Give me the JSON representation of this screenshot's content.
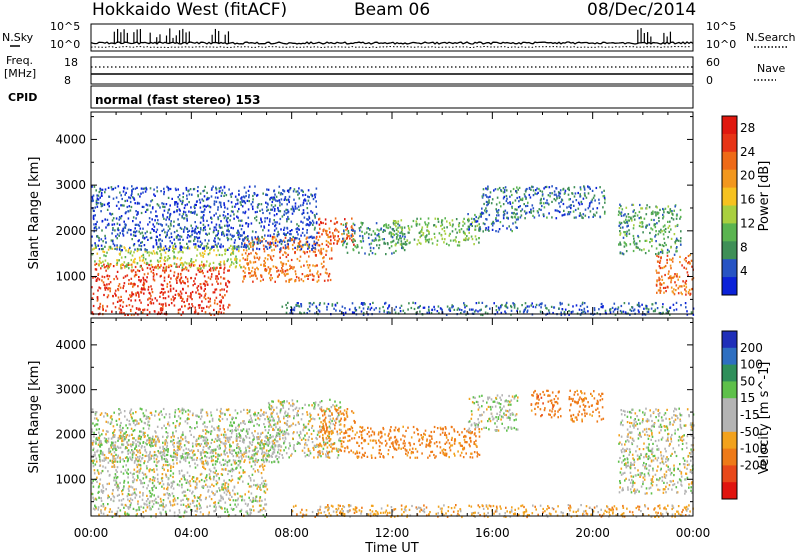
{
  "header": {
    "title": "Hokkaido West (fitACF)",
    "beam": "Beam 06",
    "date": "08/Dec/2014"
  },
  "status_panel": {
    "nsky_label": "N.Sky",
    "nsearch_label": "N.Search",
    "noise_ticks": [
      "10^5",
      "10^0"
    ],
    "freq_label": "Freq.",
    "freq_unit": "[MHz]",
    "freq_ticks": [
      "18",
      "8"
    ],
    "nave_label": "Nave",
    "nave_ticks": [
      "60",
      "0"
    ],
    "cpid_label": "CPID",
    "cpid_text": "normal (fast stereo) 153"
  },
  "colors": {
    "power": [
      "#0b22d8",
      "#2754c4",
      "#3f8f57",
      "#5ab450",
      "#a9cf3f",
      "#f6c220",
      "#f2971e",
      "#ee6a17",
      "#e73416",
      "#e0180f"
    ],
    "velocity": [
      "#1f2fb9",
      "#2e6fc1",
      "#2f8f5a",
      "#5ec04a",
      "#b4b4b4",
      "#b4b4b4",
      "#f2a21d",
      "#ee7a18",
      "#e8481a",
      "#e0140f"
    ]
  },
  "chart_data": [
    {
      "type": "heatmap",
      "title": "",
      "xlabel": "Time UT",
      "ylabel": "Slant Range [km]",
      "x_ticks": [
        "00:00",
        "04:00",
        "08:00",
        "12:00",
        "16:00",
        "20:00",
        "00:00"
      ],
      "x_range_hours": [
        0,
        24
      ],
      "ylim": [
        180,
        4600
      ],
      "y_ticks": [
        1000,
        2000,
        3000,
        4000
      ],
      "colorbar": {
        "label": "Power [dB]",
        "ticks": [
          4,
          8,
          12,
          16,
          20,
          24,
          28
        ],
        "range": [
          0,
          30
        ]
      },
      "scatter_regions": [
        {
          "t0": 0.0,
          "t1": 5.5,
          "r0": 180,
          "r1": 1300,
          "value": 26
        },
        {
          "t0": 0.0,
          "t1": 6.0,
          "r0": 1200,
          "r1": 1700,
          "value": 14
        },
        {
          "t0": 6.0,
          "t1": 9.6,
          "r0": 900,
          "r1": 1900,
          "value": 22
        },
        {
          "t0": 9.0,
          "t1": 10.5,
          "r0": 1700,
          "r1": 2300,
          "value": 24
        },
        {
          "t0": 10.0,
          "t1": 12.5,
          "r0": 1500,
          "r1": 2200,
          "value": 8
        },
        {
          "t0": 12.0,
          "t1": 15.5,
          "r0": 1700,
          "r1": 2300,
          "value": 11
        },
        {
          "t0": 15.0,
          "t1": 17.0,
          "r0": 2000,
          "r1": 2400,
          "value": 6
        },
        {
          "t0": 15.5,
          "t1": 20.5,
          "r0": 2300,
          "r1": 3000,
          "value": 6
        },
        {
          "t0": 0.0,
          "t1": 9.0,
          "r0": 1600,
          "r1": 3000,
          "value": 4
        },
        {
          "t0": 21.0,
          "t1": 23.5,
          "r0": 1500,
          "r1": 2600,
          "value": 9
        },
        {
          "t0": 22.5,
          "t1": 24.0,
          "r0": 600,
          "r1": 1500,
          "value": 22
        },
        {
          "t0": 7.5,
          "t1": 24.0,
          "r0": 180,
          "r1": 450,
          "value": 5
        }
      ]
    },
    {
      "type": "heatmap",
      "title": "",
      "xlabel": "Time UT",
      "ylabel": "Slant Range [km]",
      "x_ticks": [
        "00:00",
        "04:00",
        "08:00",
        "12:00",
        "16:00",
        "20:00",
        "00:00"
      ],
      "x_range_hours": [
        0,
        24
      ],
      "ylim": [
        180,
        4600
      ],
      "y_ticks": [
        1000,
        2000,
        3000,
        4000
      ],
      "colorbar": {
        "label": "Velocity [m s^-1]",
        "ticks": [
          "200",
          "100",
          "50",
          "15",
          "-15",
          "-50",
          "-100",
          "-200"
        ],
        "range": [
          -250,
          250
        ]
      },
      "scatter_regions": [
        {
          "t0": 0.0,
          "t1": 7.0,
          "r0": 180,
          "r1": 2000,
          "value": 0
        },
        {
          "t0": 0.0,
          "t1": 7.5,
          "r0": 1400,
          "r1": 2600,
          "value": 5
        },
        {
          "t0": 7.0,
          "t1": 10.0,
          "r0": 1500,
          "r1": 2800,
          "value": 0
        },
        {
          "t0": 9.0,
          "t1": 10.5,
          "r0": 1600,
          "r1": 2600,
          "value": -60
        },
        {
          "t0": 10.5,
          "t1": 15.5,
          "r0": 1500,
          "r1": 2200,
          "value": -70
        },
        {
          "t0": 15.0,
          "t1": 17.0,
          "r0": 2100,
          "r1": 2900,
          "value": 8
        },
        {
          "t0": 17.5,
          "t1": 18.7,
          "r0": 2400,
          "r1": 3000,
          "value": -75
        },
        {
          "t0": 19.0,
          "t1": 20.4,
          "r0": 2300,
          "r1": 3000,
          "value": -70
        },
        {
          "t0": 21.0,
          "t1": 24.0,
          "r0": 700,
          "r1": 2600,
          "value": 0
        },
        {
          "t0": 8.0,
          "t1": 24.0,
          "r0": 180,
          "r1": 450,
          "value": -30
        }
      ]
    }
  ]
}
